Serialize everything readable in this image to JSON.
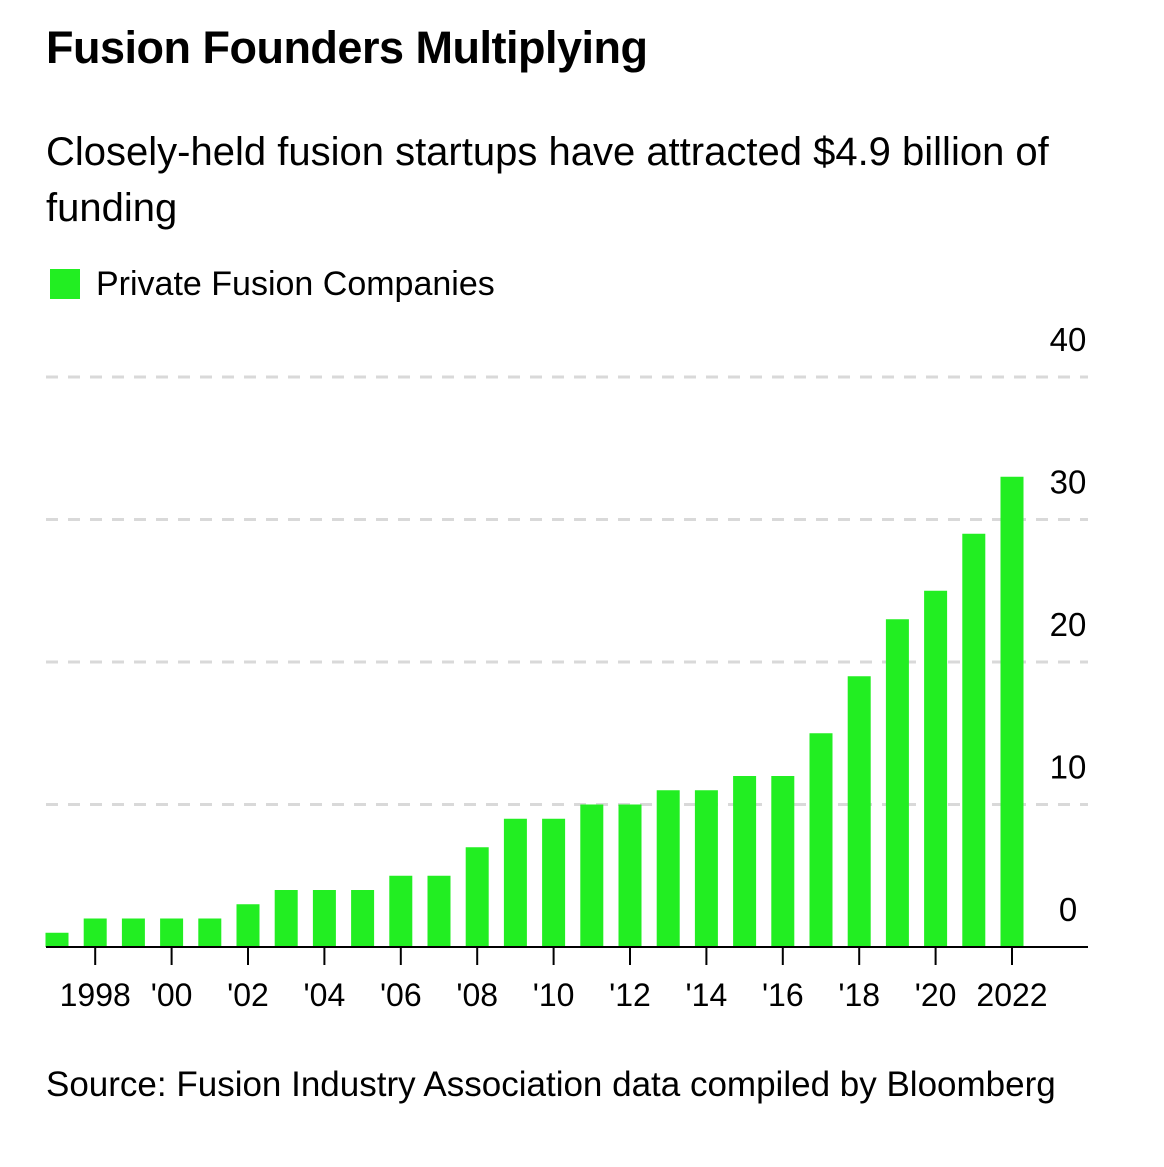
{
  "title": "Fusion Founders Multiplying",
  "subtitle": "Closely-held fusion startups have attracted $4.9 billion of funding",
  "source": "Source: Fusion Industry Association data compiled by Bloomberg",
  "colors": {
    "bar": "#22ee22",
    "grid": "#d9d9d9",
    "axis": "#000000",
    "text": "#000000"
  },
  "chart_data": {
    "type": "bar",
    "title": "Fusion Founders Multiplying",
    "subtitle": "Closely-held fusion startups have attracted $4.9 billion of funding",
    "xlabel": "",
    "ylabel": "",
    "ylim": [
      0,
      40
    ],
    "y_ticks": [
      0,
      10,
      20,
      30,
      40
    ],
    "grid": true,
    "legend_position": "top-left",
    "categories": [
      "1997",
      "1998",
      "1999",
      "2000",
      "2001",
      "2002",
      "2003",
      "2004",
      "2005",
      "2006",
      "2007",
      "2008",
      "2009",
      "2010",
      "2011",
      "2012",
      "2013",
      "2014",
      "2015",
      "2016",
      "2017",
      "2018",
      "2019",
      "2020",
      "2021",
      "2022"
    ],
    "x_tick_labels": [
      {
        "category": "1998",
        "label": "1998"
      },
      {
        "category": "2000",
        "label": "'00"
      },
      {
        "category": "2002",
        "label": "'02"
      },
      {
        "category": "2004",
        "label": "'04"
      },
      {
        "category": "2006",
        "label": "'06"
      },
      {
        "category": "2008",
        "label": "'08"
      },
      {
        "category": "2010",
        "label": "'10"
      },
      {
        "category": "2012",
        "label": "'12"
      },
      {
        "category": "2014",
        "label": "'14"
      },
      {
        "category": "2016",
        "label": "'16"
      },
      {
        "category": "2018",
        "label": "'18"
      },
      {
        "category": "2020",
        "label": "'20"
      },
      {
        "category": "2022",
        "label": "2022"
      }
    ],
    "series": [
      {
        "name": "Private Fusion Companies",
        "values": [
          1,
          2,
          2,
          2,
          2,
          3,
          4,
          4,
          4,
          5,
          5,
          7,
          9,
          9,
          10,
          10,
          11,
          11,
          12,
          12,
          15,
          19,
          23,
          25,
          29,
          33
        ]
      }
    ]
  }
}
